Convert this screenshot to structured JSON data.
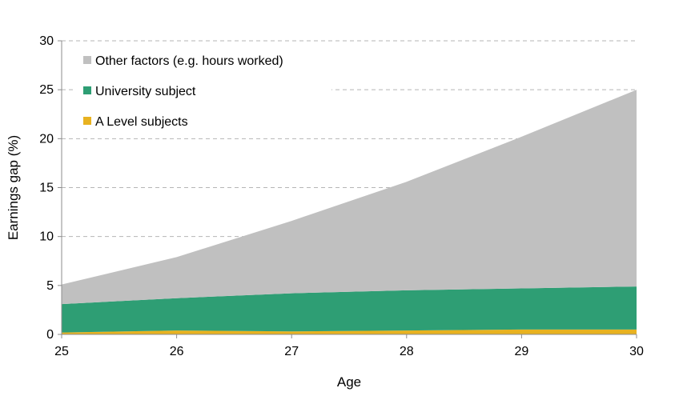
{
  "chart_data": {
    "type": "area",
    "stacked": true,
    "x": [
      25,
      26,
      27,
      28,
      29,
      30
    ],
    "series": [
      {
        "name": "A Level subjects",
        "color": "#e8b220",
        "values": [
          0.2,
          0.4,
          0.3,
          0.4,
          0.5,
          0.5
        ]
      },
      {
        "name": "University subject",
        "color": "#2e9e74",
        "values": [
          2.9,
          3.3,
          3.9,
          4.1,
          4.2,
          4.4
        ]
      },
      {
        "name": "Other factors (e.g. hours worked)",
        "color": "#c0c0c0",
        "values": [
          2.0,
          4.2,
          7.4,
          11.1,
          15.5,
          20.1
        ]
      }
    ],
    "xlabel": "Age",
    "ylabel": "Earnings gap (%)",
    "xlim": [
      25,
      30
    ],
    "ylim": [
      0,
      30
    ],
    "yticks": [
      "0",
      "5",
      "10",
      "15",
      "20",
      "25",
      "30"
    ],
    "xticks": [
      "25",
      "26",
      "27",
      "28",
      "29",
      "30"
    ],
    "legend": {
      "placement": "top-left",
      "entries": [
        "Other factors (e.g. hours worked)",
        "University subject",
        "A Level subjects"
      ]
    },
    "grid": "horizontal-dashed"
  }
}
